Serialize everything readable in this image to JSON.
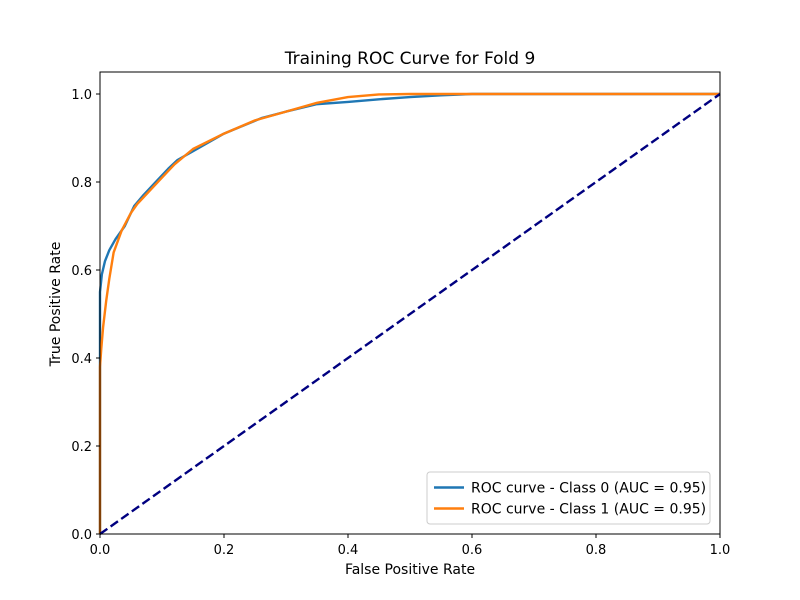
{
  "chart_data": {
    "type": "line",
    "title": "Training ROC Curve for Fold 9",
    "xlabel": "False Positive Rate",
    "ylabel": "True Positive Rate",
    "xlim": [
      0.0,
      1.0
    ],
    "ylim": [
      0.0,
      1.05
    ],
    "x_ticks": [
      "0.0",
      "0.2",
      "0.4",
      "0.6",
      "0.8",
      "1.0"
    ],
    "y_ticks": [
      "0.0",
      "0.2",
      "0.4",
      "0.6",
      "0.8",
      "1.0"
    ],
    "grid": false,
    "legend_position": "lower-right",
    "series": [
      {
        "name": "ROC curve - Class 0 (AUC = 0.95)",
        "color": "#1f77b4",
        "x": [
          0.0,
          0.0,
          0.003,
          0.008,
          0.015,
          0.025,
          0.04,
          0.055,
          0.07,
          0.09,
          0.11,
          0.125,
          0.15,
          0.2,
          0.26,
          0.3,
          0.35,
          0.4,
          0.45,
          0.5,
          0.55,
          0.6,
          0.7,
          0.8,
          0.9,
          1.0
        ],
        "y": [
          0.0,
          0.55,
          0.59,
          0.62,
          0.645,
          0.67,
          0.7,
          0.745,
          0.77,
          0.8,
          0.83,
          0.85,
          0.87,
          0.91,
          0.945,
          0.96,
          0.977,
          0.982,
          0.988,
          0.993,
          0.997,
          1.0,
          1.0,
          1.0,
          1.0,
          1.0
        ]
      },
      {
        "name": "ROC curve - Class 1 (AUC = 0.95)",
        "color": "#ff7f0e",
        "x": [
          0.0,
          0.0,
          0.002,
          0.005,
          0.01,
          0.015,
          0.022,
          0.035,
          0.05,
          0.06,
          0.08,
          0.1,
          0.12,
          0.15,
          0.2,
          0.25,
          0.3,
          0.35,
          0.4,
          0.45,
          0.5,
          0.6,
          0.7,
          0.8,
          0.9,
          1.0
        ],
        "y": [
          0.0,
          0.38,
          0.42,
          0.47,
          0.53,
          0.58,
          0.64,
          0.69,
          0.73,
          0.75,
          0.78,
          0.81,
          0.84,
          0.875,
          0.91,
          0.94,
          0.96,
          0.98,
          0.993,
          0.999,
          1.0,
          1.0,
          1.0,
          1.0,
          1.0,
          1.0
        ]
      },
      {
        "name": "",
        "color": "#000080",
        "style": "dashed",
        "x": [
          0.0,
          1.0
        ],
        "y": [
          0.0,
          1.0
        ]
      }
    ]
  }
}
